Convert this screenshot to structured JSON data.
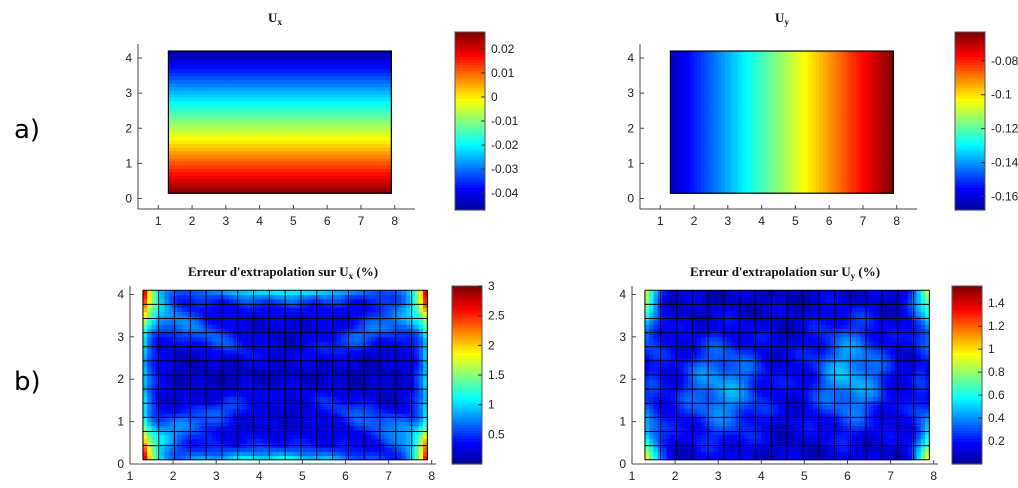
{
  "row_labels": {
    "a": "a)",
    "b": "b)"
  },
  "colors": {
    "jet": [
      "#00008f",
      "#0000ff",
      "#0080ff",
      "#00ffff",
      "#80ff80",
      "#ffff00",
      "#ff8000",
      "#ff0000",
      "#800000"
    ],
    "grid_line": "#000000"
  },
  "chart_data": [
    {
      "id": "ux",
      "type": "heatmap",
      "title": "U",
      "title_sub": "x",
      "x_ticks": [
        "1",
        "2",
        "3",
        "4",
        "5",
        "6",
        "7",
        "8"
      ],
      "y_ticks": [
        "0",
        "1",
        "2",
        "3",
        "4"
      ],
      "xlim": [
        0.4,
        8.6
      ],
      "ylim": [
        -0.3,
        4.4
      ],
      "domain": {
        "x": [
          1.3,
          7.9
        ],
        "y": [
          0.15,
          4.2
        ]
      },
      "colorbar": {
        "range": [
          -0.047,
          0.027
        ],
        "ticks": [
          "0.02",
          "0.01",
          "0",
          "-0.01",
          "-0.02",
          "-0.03",
          "-0.04"
        ],
        "tick_values": [
          0.02,
          0.01,
          0,
          -0.01,
          -0.02,
          -0.03,
          -0.04
        ]
      },
      "field": "ux_linear_in_y",
      "grid_overlay": false
    },
    {
      "id": "uy",
      "type": "heatmap",
      "title": "U",
      "title_sub": "y",
      "x_ticks": [
        "1",
        "2",
        "3",
        "4",
        "5",
        "6",
        "7",
        "8"
      ],
      "y_ticks": [
        "0",
        "1",
        "2",
        "3",
        "4"
      ],
      "xlim": [
        0.4,
        8.6
      ],
      "ylim": [
        -0.3,
        4.4
      ],
      "domain": {
        "x": [
          1.3,
          7.9
        ],
        "y": [
          0.15,
          4.2
        ]
      },
      "colorbar": {
        "range": [
          -0.168,
          -0.063
        ],
        "ticks": [
          "-0.08",
          "-0.1",
          "-0.12",
          "-0.14",
          "-0.16"
        ],
        "tick_values": [
          -0.08,
          -0.1,
          -0.12,
          -0.14,
          -0.16
        ]
      },
      "field": "uy_linear_in_x",
      "grid_overlay": false
    },
    {
      "id": "err_ux",
      "type": "heatmap",
      "title": "Erreur d'extrapolation sur U",
      "title_sub": "x",
      "title_suffix": " (%)",
      "x_ticks": [
        "1",
        "2",
        "3",
        "4",
        "5",
        "6",
        "7",
        "8"
      ],
      "y_ticks": [
        "0",
        "1",
        "2",
        "3",
        "4"
      ],
      "xlim": [
        1.0,
        8.1
      ],
      "ylim": [
        0.0,
        4.2
      ],
      "domain": {
        "x": [
          1.3,
          7.9
        ],
        "y": [
          0.1,
          4.1
        ]
      },
      "colorbar": {
        "range": [
          0.0,
          3.0
        ],
        "ticks": [
          "3",
          "2.5",
          "2",
          "1.5",
          "1",
          "0.5"
        ],
        "tick_values": [
          3,
          2.5,
          2,
          1.5,
          1,
          0.5
        ]
      },
      "field": "error_edges",
      "grid_overlay": true
    },
    {
      "id": "err_uy",
      "type": "heatmap",
      "title": "Erreur d'extrapolation sur U",
      "title_sub": "y",
      "title_suffix": " (%)",
      "x_ticks": [
        "1",
        "2",
        "3",
        "4",
        "5",
        "6",
        "7",
        "8"
      ],
      "y_ticks": [
        "0",
        "1",
        "2",
        "3",
        "4"
      ],
      "xlim": [
        1.0,
        8.1
      ],
      "ylim": [
        0.0,
        4.2
      ],
      "domain": {
        "x": [
          1.3,
          7.9
        ],
        "y": [
          0.1,
          4.1
        ]
      },
      "colorbar": {
        "range": [
          0.0,
          1.55
        ],
        "ticks": [
          "1.4",
          "1.2",
          "1",
          "0.8",
          "0.6",
          "0.4",
          "0.2"
        ],
        "tick_values": [
          1.4,
          1.2,
          1,
          0.8,
          0.6,
          0.4,
          0.2
        ]
      },
      "field": "error_blobs",
      "grid_overlay": true
    }
  ]
}
